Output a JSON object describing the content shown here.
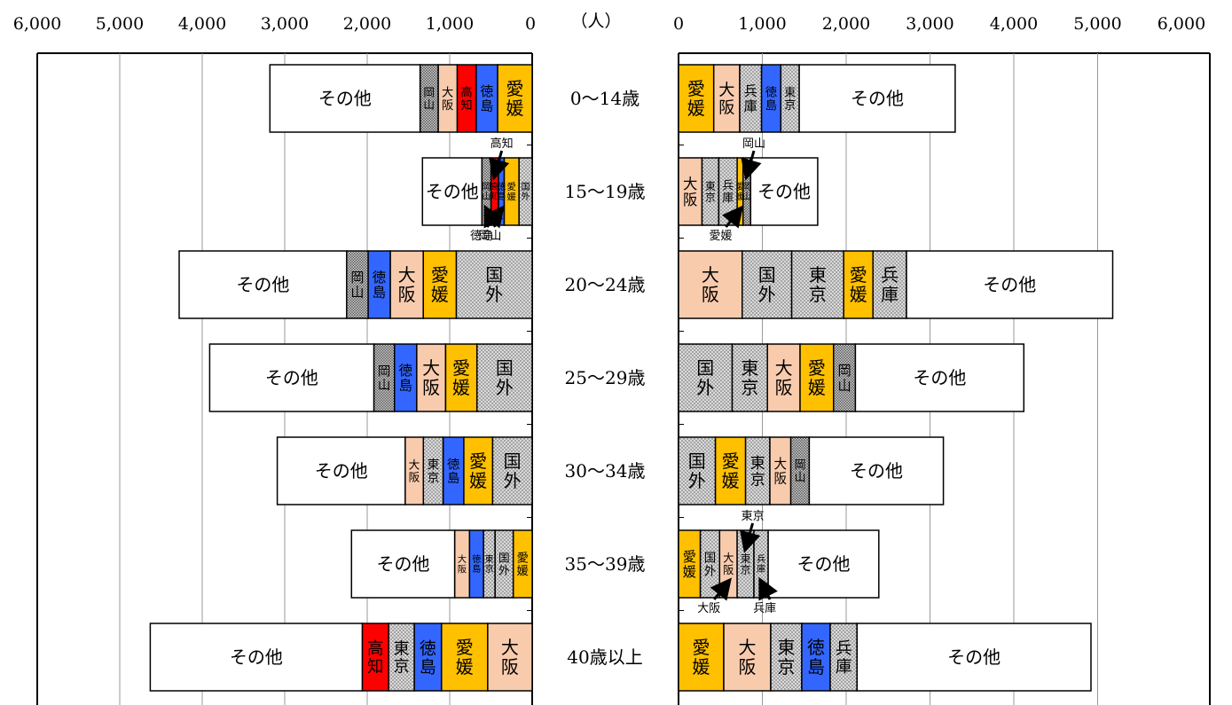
{
  "colors": {
    "愛媛": "#ffc000",
    "大阪": "#f8cbad",
    "高知": "#ff0000",
    "徳島": "#3366ff",
    "東京": "#d9d9d9",
    "兵庫": "#d9d9d9",
    "岡山": "#bfbfbf",
    "国外": "#d0d0d0",
    "その他": "#ffffff"
  },
  "chart_data": {
    "type": "bar",
    "unit_label": "（人）",
    "xlim": [
      0,
      6000
    ],
    "tick_values": [
      0,
      1000,
      2000,
      3000,
      4000,
      5000,
      6000
    ],
    "tick_labels": [
      "0",
      "1,000",
      "2,000",
      "3,000",
      "4,000",
      "5,000",
      "6,000"
    ],
    "categories": [
      "0～14歳",
      "15～19歳",
      "20～24歳",
      "25～29歳",
      "30～34歳",
      "35～39歳",
      "40歳以上"
    ],
    "left_panel": [
      [
        {
          "name": "愛媛",
          "value": 420
        },
        {
          "name": "徳島",
          "value": 260
        },
        {
          "name": "高知",
          "value": 230
        },
        {
          "name": "大阪",
          "value": 230
        },
        {
          "name": "岡山",
          "value": 220
        },
        {
          "name": "その他",
          "value": 1820
        }
      ],
      [
        {
          "name": "国外",
          "value": 160
        },
        {
          "name": "愛媛",
          "value": 180
        },
        {
          "name": "徳島",
          "value": 70
        },
        {
          "name": "高知",
          "value": 90
        },
        {
          "name": "岡山",
          "value": 110
        },
        {
          "name": "その他",
          "value": 720
        }
      ],
      [
        {
          "name": "国外",
          "value": 920
        },
        {
          "name": "愛媛",
          "value": 400
        },
        {
          "name": "大阪",
          "value": 400
        },
        {
          "name": "徳島",
          "value": 270
        },
        {
          "name": "岡山",
          "value": 260
        },
        {
          "name": "その他",
          "value": 2030
        }
      ],
      [
        {
          "name": "国外",
          "value": 670
        },
        {
          "name": "愛媛",
          "value": 380
        },
        {
          "name": "大阪",
          "value": 350
        },
        {
          "name": "徳島",
          "value": 270
        },
        {
          "name": "岡山",
          "value": 250
        },
        {
          "name": "その他",
          "value": 1990
        }
      ],
      [
        {
          "name": "国外",
          "value": 480
        },
        {
          "name": "愛媛",
          "value": 350
        },
        {
          "name": "徳島",
          "value": 250
        },
        {
          "name": "東京",
          "value": 240
        },
        {
          "name": "大阪",
          "value": 220
        },
        {
          "name": "その他",
          "value": 1550
        }
      ],
      [
        {
          "name": "愛媛",
          "value": 230
        },
        {
          "name": "国外",
          "value": 220
        },
        {
          "name": "東京",
          "value": 140
        },
        {
          "name": "徳島",
          "value": 170
        },
        {
          "name": "大阪",
          "value": 180
        },
        {
          "name": "その他",
          "value": 1250
        }
      ],
      [
        {
          "name": "大阪",
          "value": 540
        },
        {
          "name": "愛媛",
          "value": 560
        },
        {
          "name": "徳島",
          "value": 330
        },
        {
          "name": "東京",
          "value": 310
        },
        {
          "name": "高知",
          "value": 320
        },
        {
          "name": "その他",
          "value": 2570
        }
      ]
    ],
    "right_panel": [
      [
        {
          "name": "愛媛",
          "value": 420
        },
        {
          "name": "大阪",
          "value": 310
        },
        {
          "name": "兵庫",
          "value": 260
        },
        {
          "name": "徳島",
          "value": 230
        },
        {
          "name": "東京",
          "value": 220
        },
        {
          "name": "その他",
          "value": 1860
        }
      ],
      [
        {
          "name": "大阪",
          "value": 280
        },
        {
          "name": "東京",
          "value": 200
        },
        {
          "name": "兵庫",
          "value": 220
        },
        {
          "name": "愛媛",
          "value": 70
        },
        {
          "name": "岡山",
          "value": 90
        },
        {
          "name": "その他",
          "value": 800
        }
      ],
      [
        {
          "name": "大阪",
          "value": 760
        },
        {
          "name": "国外",
          "value": 590
        },
        {
          "name": "東京",
          "value": 620
        },
        {
          "name": "愛媛",
          "value": 350
        },
        {
          "name": "兵庫",
          "value": 400
        },
        {
          "name": "その他",
          "value": 2460
        }
      ],
      [
        {
          "name": "国外",
          "value": 640
        },
        {
          "name": "東京",
          "value": 420
        },
        {
          "name": "大阪",
          "value": 390
        },
        {
          "name": "愛媛",
          "value": 400
        },
        {
          "name": "岡山",
          "value": 260
        },
        {
          "name": "その他",
          "value": 2010
        }
      ],
      [
        {
          "name": "国外",
          "value": 440
        },
        {
          "name": "愛媛",
          "value": 360
        },
        {
          "name": "東京",
          "value": 290
        },
        {
          "name": "大阪",
          "value": 250
        },
        {
          "name": "岡山",
          "value": 220
        },
        {
          "name": "その他",
          "value": 1600
        }
      ],
      [
        {
          "name": "愛媛",
          "value": 260
        },
        {
          "name": "国外",
          "value": 230
        },
        {
          "name": "大阪",
          "value": 210
        },
        {
          "name": "東京",
          "value": 200
        },
        {
          "name": "兵庫",
          "value": 170
        },
        {
          "name": "その他",
          "value": 1320
        }
      ],
      [
        {
          "name": "愛媛",
          "value": 540
        },
        {
          "name": "大阪",
          "value": 560
        },
        {
          "name": "東京",
          "value": 370
        },
        {
          "name": "徳島",
          "value": 340
        },
        {
          "name": "兵庫",
          "value": 320
        },
        {
          "name": "その他",
          "value": 2790
        }
      ]
    ],
    "callouts": [
      {
        "text": "高知",
        "panel": "left",
        "row": 1,
        "segment": "高知",
        "side": "top"
      },
      {
        "text": "岡山",
        "panel": "left",
        "row": 1,
        "segment": "岡山",
        "side": "bottom"
      },
      {
        "text": "徳島",
        "panel": "left",
        "row": 1,
        "segment": "徳島",
        "side": "bottom"
      },
      {
        "text": "岡山",
        "panel": "right",
        "row": 1,
        "segment": "岡山",
        "side": "top"
      },
      {
        "text": "愛媛",
        "panel": "right",
        "row": 1,
        "segment": "愛媛",
        "side": "bottom"
      },
      {
        "text": "東京",
        "panel": "right",
        "row": 5,
        "segment": "東京",
        "side": "top"
      },
      {
        "text": "大阪",
        "panel": "right",
        "row": 5,
        "segment": "大阪",
        "side": "bottom"
      },
      {
        "text": "兵庫",
        "panel": "right",
        "row": 5,
        "segment": "兵庫",
        "side": "bottom"
      }
    ]
  }
}
